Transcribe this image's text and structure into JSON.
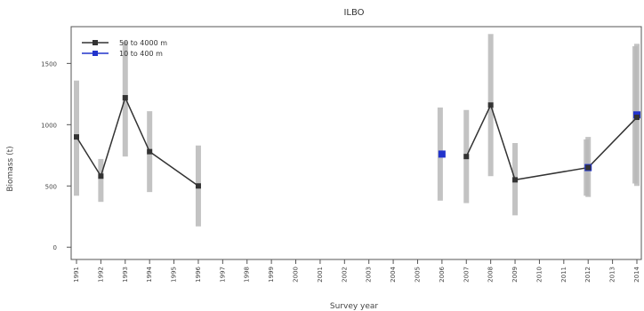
{
  "chart_data": {
    "type": "line",
    "title": "ILBO",
    "xlabel": "Survey year",
    "ylabel": "Biomass (t)",
    "x": [
      1991,
      1992,
      1993,
      1994,
      1995,
      1996,
      1997,
      1998,
      1999,
      2000,
      2001,
      2002,
      2003,
      2004,
      2005,
      2006,
      2007,
      2008,
      2009,
      2010,
      2011,
      2012,
      2013,
      2014
    ],
    "ylim": [
      -100,
      1800
    ],
    "yticks": [
      0,
      500,
      1000,
      1500
    ],
    "ytick_labels": [
      "0",
      "500",
      "1000",
      "1500"
    ],
    "legend": {
      "position": "top-left"
    },
    "series": [
      {
        "name": "50 to 4000 m",
        "color": "#333333",
        "marker": "square",
        "segments": [
          [
            {
              "x": 1991,
              "y": 900,
              "lo": 420,
              "hi": 1360
            },
            {
              "x": 1992,
              "y": 580,
              "lo": 370,
              "hi": 720
            },
            {
              "x": 1993,
              "y": 1220,
              "lo": 740,
              "hi": 1680
            },
            {
              "x": 1994,
              "y": 780,
              "lo": 450,
              "hi": 1110
            },
            {
              "x": 1996,
              "y": 500,
              "lo": 170,
              "hi": 830
            }
          ],
          [
            {
              "x": 2007,
              "y": 740,
              "lo": 360,
              "hi": 1120
            },
            {
              "x": 2008,
              "y": 1160,
              "lo": 580,
              "hi": 1740
            },
            {
              "x": 2009,
              "y": 550,
              "lo": 260,
              "hi": 850
            },
            {
              "x": 2012,
              "y": 650,
              "lo": 410,
              "hi": 900
            },
            {
              "x": 2014,
              "y": 1060,
              "lo": 500,
              "hi": 1660
            }
          ]
        ]
      },
      {
        "name": "10 to 400 m",
        "color": "#2233cc",
        "marker": "square",
        "points": [
          {
            "x": 2006,
            "y": 760,
            "lo": 380,
            "hi": 1140
          },
          {
            "x": 2012,
            "y": 650,
            "lo": 420,
            "hi": 880
          },
          {
            "x": 2014,
            "y": 1080,
            "lo": 520,
            "hi": 1640
          }
        ]
      }
    ]
  }
}
